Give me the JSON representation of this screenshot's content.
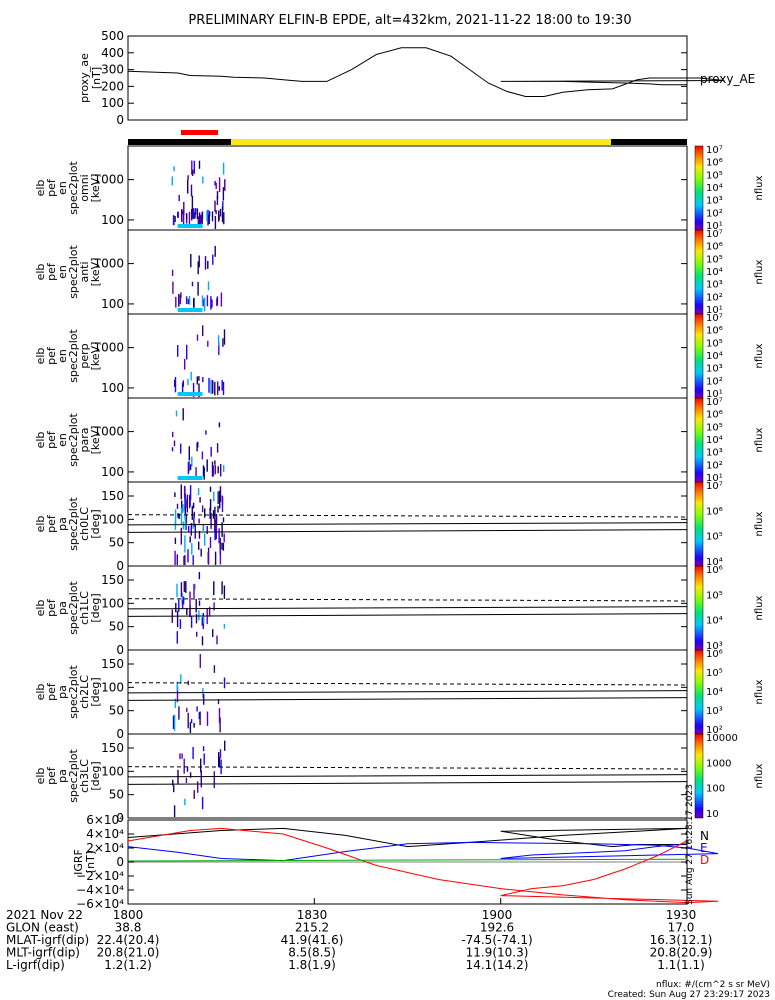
{
  "title": "PRELIMINARY ELFIN-B EPDE, alt=432km, 2021-11-22 18:00 to 19:30",
  "colors": {
    "ae": "#000000",
    "bar_black": "#000000",
    "bar_yellow": "#ffe81a",
    "bar_red": "#ff0000",
    "grf_n": "#000000",
    "grf_e": "#0000ff",
    "grf_d": "#ff0000",
    "grf_extra": "#00aa00"
  },
  "panels": {
    "ae": {
      "ylabel": [
        "proxy_ae",
        "[nT]"
      ],
      "ticks": [
        "500",
        "400",
        "300",
        "200",
        "100",
        "0"
      ],
      "right_label": "proxy_AE"
    },
    "en": [
      {
        "ylabel": [
          "elb",
          "pef",
          "en",
          "spec2plot",
          "omni",
          "[keV]"
        ]
      },
      {
        "ylabel": [
          "elb",
          "pef",
          "en",
          "spec2plot",
          "anti",
          "[keV]"
        ]
      },
      {
        "ylabel": [
          "elb",
          "pef",
          "en",
          "spec2plot",
          "perp",
          "[keV]"
        ]
      },
      {
        "ylabel": [
          "elb",
          "pef",
          "en",
          "spec2plot",
          "para",
          "[keV]"
        ]
      }
    ],
    "en_ticks": [
      "1000",
      "100"
    ],
    "pa": [
      {
        "ylabel": [
          "elb",
          "pef",
          "pa",
          "spec2plot",
          "ch0LC",
          "[deg]"
        ]
      },
      {
        "ylabel": [
          "elb",
          "pef",
          "pa",
          "spec2plot",
          "ch1LC",
          "[deg]"
        ]
      },
      {
        "ylabel": [
          "elb",
          "pef",
          "pa",
          "spec2plot",
          "ch2LC",
          "[deg]"
        ]
      },
      {
        "ylabel": [
          "elb",
          "pef",
          "pa",
          "spec2plot",
          "ch3LC",
          "[deg]"
        ]
      }
    ],
    "pa_ticks": [
      "150",
      "100",
      "50",
      "0"
    ],
    "grf": {
      "ylabel": [
        "IGRF",
        "[nT]"
      ],
      "legend": [
        "N",
        "E",
        "D"
      ],
      "ticks": [
        "6×10⁴",
        "4×10⁴",
        "2×10⁴",
        "0",
        "−2×10⁴",
        "−4×10⁴",
        "−6×10⁴"
      ],
      "side_note": "Sun Aug 27 16:28:17 2023"
    }
  },
  "colorbars": {
    "unit": "nflux",
    "en": [
      "10⁷",
      "10⁶",
      "10⁵",
      "10⁴",
      "10³",
      "10²",
      "10¹"
    ],
    "pa0": [
      "10⁷",
      "10⁶",
      "10⁵",
      "10⁴"
    ],
    "pa1": [
      "10⁶",
      "10⁵",
      "10⁴",
      "10³"
    ],
    "pa2": [
      "10⁶",
      "10⁵",
      "10⁴",
      "10³",
      "10²"
    ],
    "pa3": [
      "10000",
      "1000",
      "100",
      "10"
    ]
  },
  "footer": {
    "rows": [
      {
        "label": "2021 Nov 22",
        "values": [
          "1800",
          "1830",
          "1900",
          "1930"
        ]
      },
      {
        "label": "GLON (east)",
        "values": [
          "38.8",
          "215.2",
          "192.6",
          "17.0"
        ]
      },
      {
        "label": "MLAT-igrf(dip)",
        "values": [
          "22.4(20.4)",
          "41.9(41.6)",
          "-74.5(-74.1)",
          "16.3(12.1)"
        ]
      },
      {
        "label": "MLT-igrf(dip)",
        "values": [
          "20.8(21.0)",
          "8.5(8.5)",
          "11.9(10.3)",
          "20.8(20.9)"
        ]
      },
      {
        "label": "L-igrf(dip)",
        "values": [
          "1.2(1.2)",
          "1.8(1.9)",
          "14.1(14.2)",
          "1.1(1.1)"
        ]
      }
    ],
    "note1": "nflux: #/(cm^2 s sr MeV)",
    "note2": "Created: Sun Aug 27 23:29:17 2023"
  },
  "chart_data": [
    {
      "type": "line",
      "name": "proxy_ae",
      "ylim": [
        0,
        500
      ],
      "xlim": [
        1800,
        1930
      ],
      "x": [
        1800,
        1808,
        1810,
        1815,
        1817,
        1822,
        1825,
        1828,
        1832,
        1836,
        1840,
        1844,
        1848,
        1852,
        1855,
        1858,
        1861,
        1864,
        1867,
        1870,
        1874,
        1878,
        1882,
        1884,
        1888,
        1892,
        1896,
        1900,
        1904,
        1910,
        1915,
        1920,
        1924,
        1926,
        1928,
        1930
      ],
      "y": [
        290,
        280,
        265,
        260,
        255,
        250,
        240,
        230,
        230,
        300,
        390,
        430,
        430,
        380,
        300,
        220,
        170,
        140,
        140,
        165,
        180,
        185,
        240,
        250,
        250,
        250,
        235,
        230,
        230,
        230,
        225,
        220,
        215,
        210,
        210,
        210
      ]
    },
    {
      "type": "heatmap",
      "name": "en omni",
      "ylabel": "[keV]",
      "yscale": "log",
      "ticks": [
        1000,
        100
      ],
      "active_x": [
        1806,
        1814
      ]
    },
    {
      "type": "heatmap",
      "name": "en anti",
      "ylabel": "[keV]",
      "yscale": "log",
      "ticks": [
        1000,
        100
      ],
      "active_x": [
        1806,
        1814
      ]
    },
    {
      "type": "heatmap",
      "name": "en perp",
      "ylabel": "[keV]",
      "yscale": "log",
      "ticks": [
        1000,
        100
      ],
      "active_x": [
        1806,
        1814
      ]
    },
    {
      "type": "heatmap",
      "name": "en para",
      "ylabel": "[keV]",
      "yscale": "log",
      "ticks": [
        1000,
        100
      ],
      "active_x": [
        1806,
        1814
      ]
    },
    {
      "type": "heatmap",
      "name": "pa ch0LC",
      "ylim": [
        0,
        180
      ],
      "ticks": [
        150,
        100,
        50,
        0
      ]
    },
    {
      "type": "heatmap",
      "name": "pa ch1LC",
      "ylim": [
        0,
        180
      ],
      "ticks": [
        150,
        100,
        50,
        0
      ]
    },
    {
      "type": "heatmap",
      "name": "pa ch2LC",
      "ylim": [
        0,
        180
      ],
      "ticks": [
        150,
        100,
        50,
        0
      ]
    },
    {
      "type": "heatmap",
      "name": "pa ch3LC",
      "ylim": [
        0,
        180
      ],
      "ticks": [
        150,
        100,
        50,
        0
      ]
    },
    {
      "type": "line",
      "name": "IGRF",
      "ylim": [
        -60000,
        60000
      ],
      "xlim": [
        1800,
        1930
      ],
      "series": [
        {
          "name": "N",
          "x": [
            1800,
            1815,
            1825,
            1835,
            1845,
            1855,
            1870,
            1880,
            1890,
            1900,
            1910,
            1918,
            1922,
            1930
          ],
          "y": [
            35000,
            45000,
            48000,
            38000,
            22000,
            28000,
            38000,
            43000,
            48000,
            44000,
            30000,
            22000,
            25000,
            25000
          ]
        },
        {
          "name": "E",
          "x": [
            1800,
            1808,
            1815,
            1825,
            1835,
            1845,
            1855,
            1865,
            1875,
            1885,
            1890,
            1895,
            1900,
            1905,
            1910,
            1915,
            1920,
            1925,
            1930
          ],
          "y": [
            22000,
            14000,
            5000,
            2000,
            15000,
            26000,
            28000,
            27000,
            26000,
            24000,
            20000,
            12000,
            5000,
            10000,
            12000,
            14000,
            16000,
            22000,
            26000
          ]
        },
        {
          "name": "D",
          "x": [
            1800,
            1810,
            1815,
            1825,
            1832,
            1840,
            1850,
            1860,
            1870,
            1880,
            1890,
            1895,
            1900,
            1905,
            1910,
            1915,
            1920,
            1925,
            1930
          ],
          "y": [
            30000,
            45000,
            48000,
            40000,
            20000,
            -5000,
            -25000,
            -38000,
            -47000,
            -54000,
            -58000,
            -56000,
            -48000,
            -38000,
            -34000,
            -25000,
            -10000,
            8000,
            30000
          ]
        }
      ]
    }
  ]
}
